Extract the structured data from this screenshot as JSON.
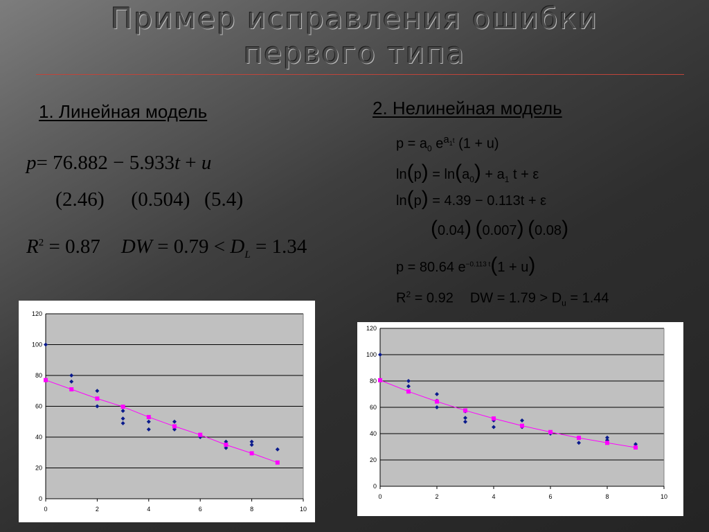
{
  "slide": {
    "title_line1": "Пример исправления ошибки",
    "title_line2": "первого типа",
    "left_heading": "1. Линейная модель",
    "right_heading": "2. Нелинейная модель"
  },
  "linear": {
    "p": "p",
    "eq1": "= 76.882 − 5.933",
    "t": "t",
    "plus": " + ",
    "u": "u",
    "se1": "2.46",
    "se2": "0.504",
    "se3": "5.4",
    "R": "R",
    "R_exp": "2",
    "r_val": " = 0.87",
    "dw": "DW",
    "dw_val": " = 0.79 < ",
    "D": "D",
    "D_sub": "L",
    "dl_val": " = 1.34"
  },
  "nonlinear": {
    "l1a": "p = a",
    "l1b": "0",
    "l1c": " e",
    "l1d": "a",
    "l1e": "1",
    "l1f": "t",
    "l1g": " (1 + u)",
    "l2a": "ln",
    "l2b": "p",
    "l2c": " = ln",
    "l2d": "a",
    "l2e": "0",
    "l2f": " + a",
    "l2g": "1",
    "l2h": " t + ε",
    "l3a": "ln",
    "l3b": "p",
    "l3c": " = 4.39 − 0.113t + ε",
    "se1": "0.04",
    "se2": "0.007",
    "se3": "0.08",
    "l4a": "p = 80.64 e",
    "l4b": "−0.113 t",
    "l4c": "1 + u",
    "R": "R",
    "R_exp": "2",
    "r_val": " = 0.92",
    "dw": "DW = 1.79 > D",
    "dw_sub": "u",
    "dw_val": " = 1.44"
  },
  "chart_data": [
    {
      "type": "scatter",
      "xlim": [
        0,
        10
      ],
      "ylim": [
        0,
        120
      ],
      "xticks": [
        0,
        2,
        4,
        6,
        8,
        10
      ],
      "yticks": [
        0,
        20,
        40,
        60,
        80,
        100,
        120
      ],
      "series": [
        {
          "type": "scatter",
          "color": "#0a1a8c",
          "points": [
            [
              0,
              100
            ],
            [
              1,
              80
            ],
            [
              1,
              76
            ],
            [
              2,
              70
            ],
            [
              2,
              65
            ],
            [
              2,
              60
            ],
            [
              3,
              57
            ],
            [
              3,
              52
            ],
            [
              3,
              49
            ],
            [
              4,
              50
            ],
            [
              4,
              45
            ],
            [
              5,
              50
            ],
            [
              5,
              45
            ],
            [
              6,
              41
            ],
            [
              6,
              40
            ],
            [
              7,
              37
            ],
            [
              7,
              33
            ],
            [
              8,
              37
            ],
            [
              8,
              35
            ],
            [
              9,
              32
            ]
          ]
        },
        {
          "type": "line",
          "color": "#ff00ff",
          "points": [
            [
              0,
              77
            ],
            [
              1,
              71
            ],
            [
              2,
              65
            ],
            [
              3,
              59.7
            ],
            [
              4,
              53
            ],
            [
              5,
              47
            ],
            [
              6,
              41.5
            ],
            [
              7,
              35
            ],
            [
              8,
              29.5
            ],
            [
              9,
              23.5
            ]
          ]
        }
      ]
    },
    {
      "type": "scatter",
      "xlim": [
        0,
        10
      ],
      "ylim": [
        0,
        120
      ],
      "xticks": [
        0,
        2,
        4,
        6,
        8,
        10
      ],
      "yticks": [
        0,
        20,
        40,
        60,
        80,
        100,
        120
      ],
      "series": [
        {
          "type": "scatter",
          "color": "#0a1a8c",
          "points": [
            [
              0,
              100
            ],
            [
              1,
              80
            ],
            [
              1,
              76
            ],
            [
              2,
              70
            ],
            [
              2,
              65
            ],
            [
              2,
              60
            ],
            [
              3,
              57
            ],
            [
              3,
              52
            ],
            [
              3,
              49
            ],
            [
              4,
              50
            ],
            [
              4,
              45
            ],
            [
              5,
              50
            ],
            [
              5,
              45
            ],
            [
              6,
              41
            ],
            [
              6,
              40
            ],
            [
              7,
              37
            ],
            [
              7,
              33
            ],
            [
              8,
              37
            ],
            [
              8,
              35
            ],
            [
              9,
              32
            ]
          ]
        },
        {
          "type": "line",
          "color": "#ff00ff",
          "points": [
            [
              0,
              80.6
            ],
            [
              1,
              72
            ],
            [
              2,
              64.4
            ],
            [
              3,
              57.6
            ],
            [
              4,
              51.5
            ],
            [
              5,
              46
            ],
            [
              6,
              41.2
            ],
            [
              7,
              36.8
            ],
            [
              8,
              33
            ],
            [
              9,
              29.5
            ]
          ]
        }
      ]
    }
  ]
}
